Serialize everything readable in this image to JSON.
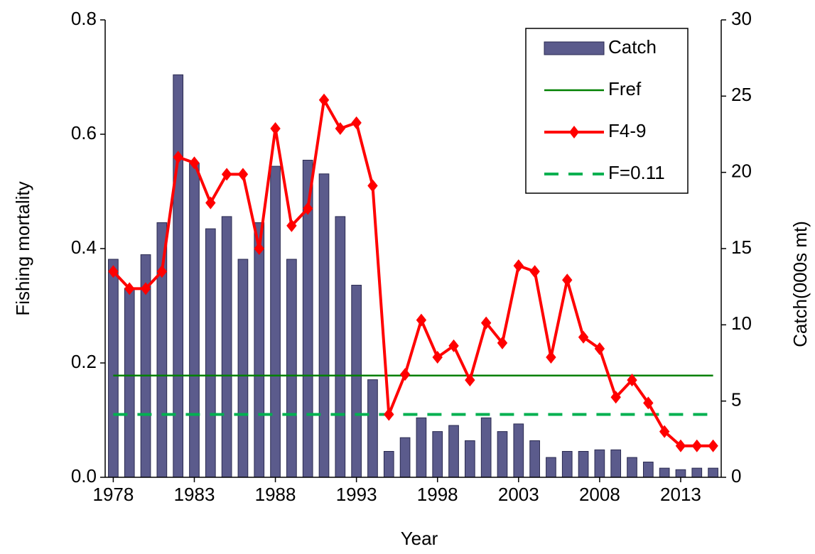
{
  "chart_data": {
    "type": "combo",
    "x_label": "Year",
    "y_label": "Fishing mortality",
    "y2_label": "Catch(000s mt)",
    "x": [
      1978,
      1979,
      1980,
      1981,
      1982,
      1983,
      1984,
      1985,
      1986,
      1987,
      1988,
      1989,
      1990,
      1991,
      1992,
      1993,
      1994,
      1995,
      1996,
      1997,
      1998,
      1999,
      2000,
      2001,
      2002,
      2003,
      2004,
      2005,
      2006,
      2007,
      2008,
      2009,
      2010,
      2011,
      2012,
      2013,
      2014,
      2015
    ],
    "xlim": [
      1977.5,
      2015.5
    ],
    "xticks": [
      1978,
      1983,
      1988,
      1993,
      1998,
      2003,
      2008,
      2013
    ],
    "ylim": [
      0,
      0.8
    ],
    "yticks": [
      {
        "value": 0,
        "label": "0.0"
      },
      0.2,
      0.4,
      0.6,
      {
        "value": 0.8,
        "label": "0.8"
      }
    ],
    "y2lim": [
      0,
      30
    ],
    "y2ticks": [
      0,
      5,
      10,
      15,
      20,
      25,
      30
    ],
    "series": [
      {
        "name": "Catch",
        "type": "bar",
        "axis": "y2",
        "color": "#5b5b8c",
        "values": [
          14.3,
          12.4,
          14.6,
          16.7,
          26.4,
          20.6,
          16.3,
          17.1,
          14.3,
          16.7,
          20.4,
          14.3,
          20.8,
          19.9,
          17.1,
          12.6,
          6.4,
          1.7,
          2.6,
          3.9,
          3.0,
          3.4,
          2.4,
          3.9,
          3.0,
          3.5,
          2.4,
          1.3,
          1.7,
          1.7,
          1.8,
          1.8,
          1.3,
          1.0,
          0.6,
          0.5,
          0.6,
          0.6
        ]
      },
      {
        "name": "Fref",
        "type": "hline",
        "color": "#008000",
        "y": 0.178
      },
      {
        "name": "F4-9",
        "type": "line",
        "color": "#ff0000",
        "values": [
          0.36,
          0.33,
          0.33,
          0.36,
          0.56,
          0.55,
          0.48,
          0.53,
          0.53,
          0.4,
          0.61,
          0.44,
          0.47,
          0.66,
          0.61,
          0.62,
          0.51,
          0.11,
          0.18,
          0.275,
          0.21,
          0.23,
          0.17,
          0.27,
          0.235,
          0.37,
          0.36,
          0.21,
          0.345,
          0.245,
          0.225,
          0.14,
          0.17,
          0.13,
          0.08,
          0.055,
          0.055,
          0.055
        ]
      },
      {
        "name": "F=0.11",
        "type": "hline",
        "dashed": true,
        "color": "#00b050",
        "y": 0.11
      }
    ]
  }
}
